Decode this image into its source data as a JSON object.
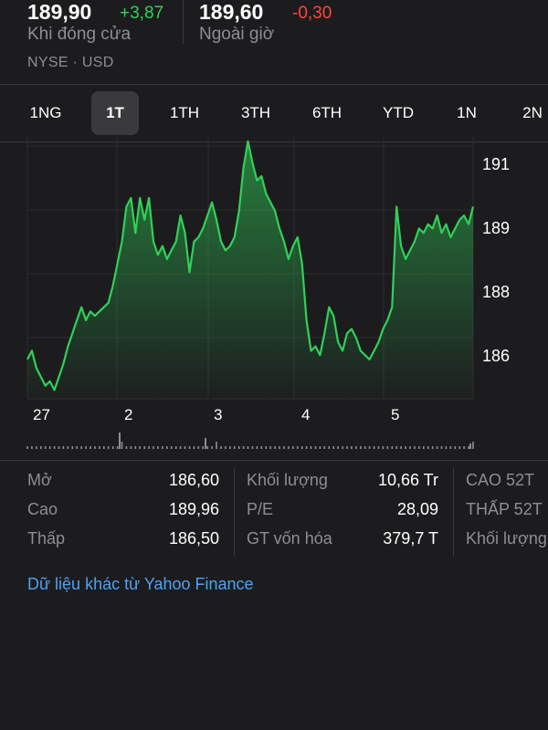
{
  "quote": {
    "close_price": "189,90",
    "close_change": "+3,87",
    "close_label": "Khi đóng cửa",
    "after_price": "189,60",
    "after_change": "-0,30",
    "after_label": "Ngoài giờ",
    "exchange": "NYSE · USD"
  },
  "colors": {
    "up": "#30d158",
    "down": "#ff453a",
    "link": "#4ea1f3"
  },
  "range_tabs": [
    "1NG",
    "1T",
    "1TH",
    "3TH",
    "6TH",
    "YTD",
    "1N",
    "2N"
  ],
  "active_range": "1T",
  "chart_data": {
    "type": "area",
    "x_tick_labels": [
      "27",
      "2",
      "3",
      "4",
      "5"
    ],
    "y_tick_labels": [
      "191",
      "189",
      "188",
      "186"
    ],
    "ylim": [
      185.4,
      191.4
    ],
    "series": [
      {
        "values": [
          186.3,
          186.5,
          186.1,
          185.9,
          185.7,
          185.8,
          185.6,
          185.9,
          186.2,
          186.6,
          186.9,
          187.2,
          187.5,
          187.2,
          187.4,
          187.3,
          187.4,
          187.5,
          187.6,
          188.0,
          188.5,
          189.0,
          189.8,
          190.0,
          189.2,
          190.0,
          189.5,
          190.0,
          189.0,
          188.7,
          188.9,
          188.6,
          188.8,
          189.0,
          189.6,
          189.2,
          188.3,
          189.0,
          189.1,
          189.3,
          189.6,
          189.9,
          189.5,
          189.0,
          188.8,
          188.9,
          189.1,
          189.7,
          190.7,
          191.3,
          190.8,
          190.4,
          190.5,
          190.1,
          189.9,
          189.7,
          189.3,
          189.0,
          188.6,
          188.9,
          189.1,
          188.5,
          187.2,
          186.5,
          186.6,
          186.4,
          186.9,
          187.5,
          187.3,
          186.7,
          186.5,
          186.9,
          187.0,
          186.8,
          186.5,
          186.4,
          186.3,
          186.5,
          186.7,
          187.0,
          187.2,
          187.5,
          189.8,
          188.9,
          188.6,
          188.8,
          189.0,
          189.3,
          189.2,
          189.4,
          189.3,
          189.6,
          189.2,
          189.4,
          189.1,
          189.3,
          189.5,
          189.6,
          189.4,
          189.8
        ]
      }
    ],
    "volume": [
      1,
      1,
      1,
      1,
      1,
      1,
      1,
      1,
      1,
      1,
      1,
      1,
      1,
      1,
      1,
      1,
      1,
      1,
      1,
      1,
      1,
      2,
      1,
      1,
      1,
      1,
      1,
      1,
      1,
      1,
      1,
      1,
      1,
      1,
      1,
      1,
      1,
      1,
      1,
      1,
      1,
      1,
      2,
      1,
      1,
      1,
      1,
      1,
      1,
      1,
      1,
      1,
      1,
      1,
      1,
      1,
      1,
      1,
      1,
      1,
      1,
      1,
      1,
      1,
      1,
      1,
      1,
      1,
      1,
      1,
      1,
      1,
      1,
      1,
      1,
      1,
      1,
      1,
      1,
      1,
      1,
      1,
      1,
      1,
      1,
      1,
      1,
      1,
      1,
      1,
      1,
      1,
      1,
      1,
      1,
      1,
      1,
      1,
      1,
      2
    ]
  },
  "stats": {
    "col1": [
      {
        "label": "Mở",
        "value": "186,60"
      },
      {
        "label": "Cao",
        "value": "189,96"
      },
      {
        "label": "Thấp",
        "value": "186,50"
      }
    ],
    "col2": [
      {
        "label": "Khối lượng",
        "value": "10,66 Tr"
      },
      {
        "label": "P/E",
        "value": "28,09"
      },
      {
        "label": "GT vốn hóa",
        "value": "379,7 T"
      }
    ],
    "col3": [
      {
        "label": "CAO 52T"
      },
      {
        "label": "THẤP 52T"
      },
      {
        "label": "Khối lượng"
      }
    ]
  },
  "more_link": "Dữ liệu khác từ Yahoo Finance"
}
